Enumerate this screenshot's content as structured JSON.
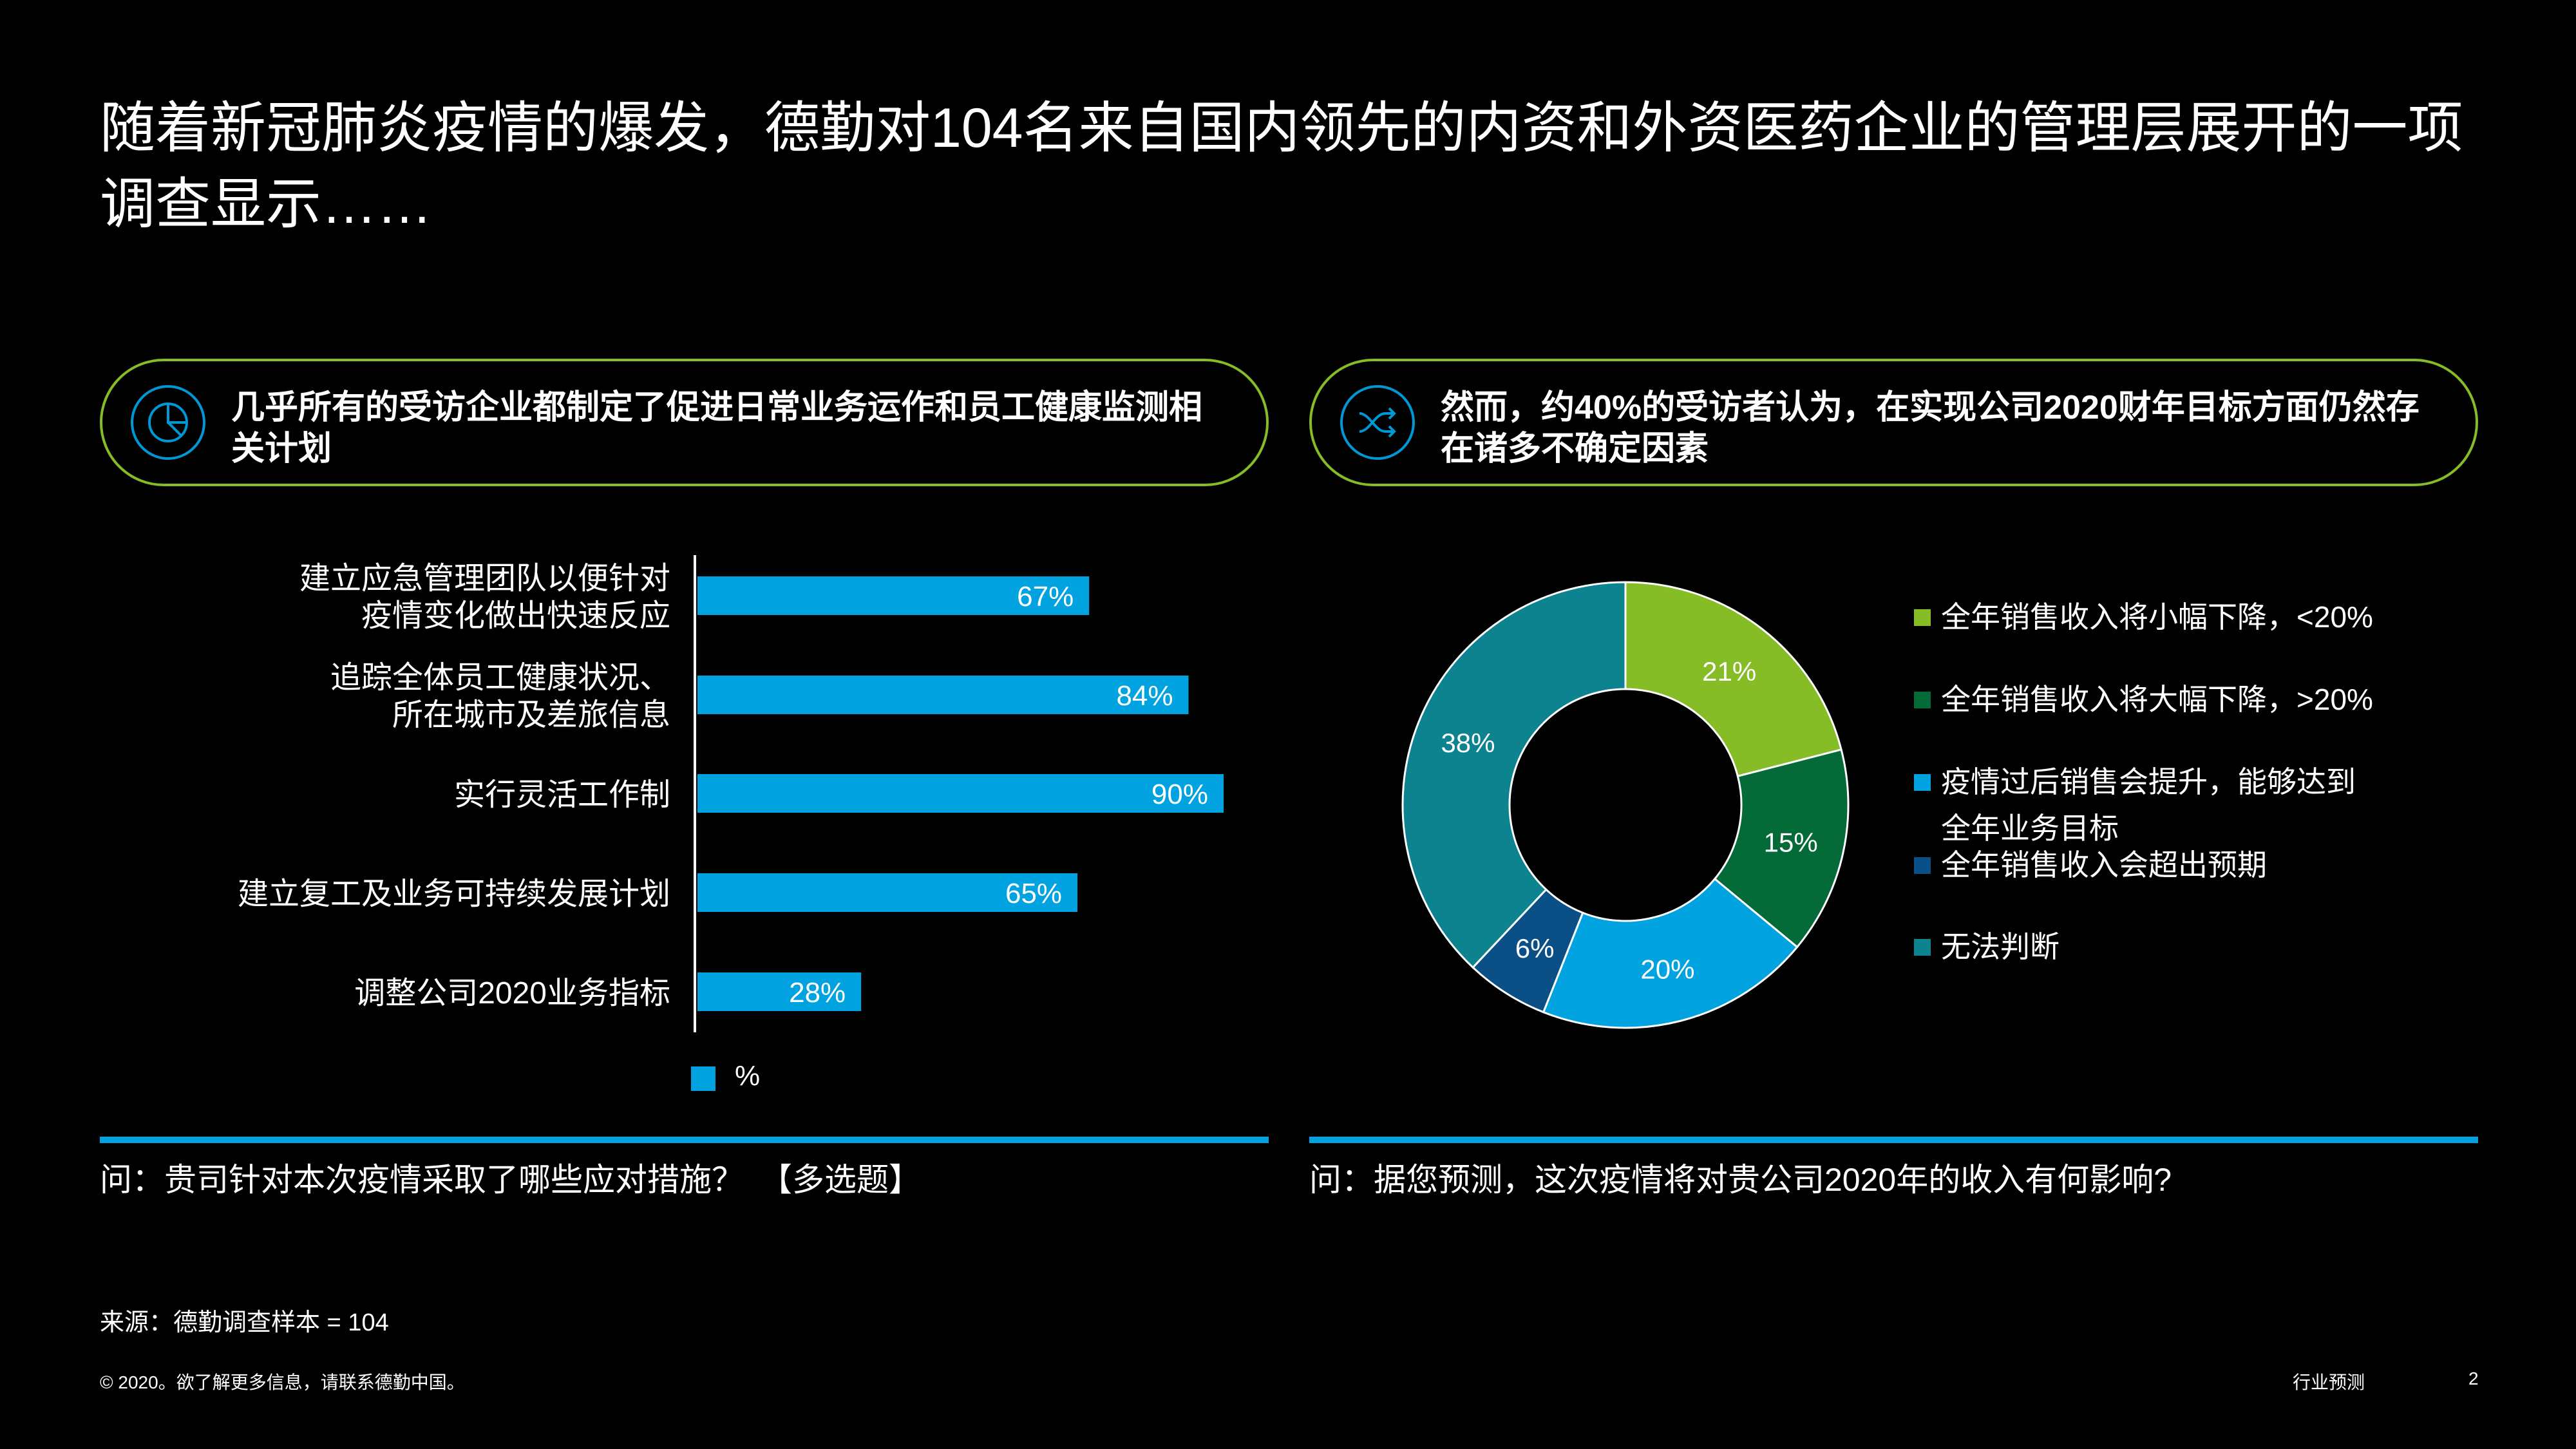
{
  "title": "随着新冠肺炎疫情的爆发，德勤对104名来自国内领先的内资和外资医药企业的管理层展开的一项调查显示……",
  "left_panel": {
    "heading": "几乎所有的受访企业都制定了促进日常业务运作和员工健康监测相关计划",
    "icon": "pie-chart-icon",
    "question": "问：贵司针对本次疫情采取了哪些应对措施？　【多选题】"
  },
  "right_panel": {
    "heading": "然而，约40%的受访者认为，在实现公司2020财年目标方面仍然存在诸多不确定因素",
    "icon": "shuffle-icon",
    "question": "问：据您预测，这次疫情将对贵公司2020年的收入有何影响?"
  },
  "colors": {
    "accent_green": "#86BC25",
    "accent_blue": "#00A3E0",
    "icon_blue": "#0097D5"
  },
  "chart_data": [
    {
      "type": "bar",
      "orientation": "horizontal",
      "categories": [
        [
          "建立应急管理团队以便针对",
          "疫情变化做出快速反应"
        ],
        [
          "追踪全体员工健康状况、",
          "所在城市及差旅信息"
        ],
        [
          "实行灵活工作制"
        ],
        [
          "建立复工及业务可持续发展计划"
        ],
        [
          "调整公司2020业务指标"
        ]
      ],
      "series": [
        {
          "name": "%",
          "values": [
            67,
            84,
            90,
            65,
            28
          ],
          "labels": [
            "67%",
            "84%",
            "90%",
            "65%",
            "28%"
          ],
          "color": "#00A3E0"
        }
      ],
      "xlim": [
        0,
        100
      ],
      "grid": false,
      "legend_position": "bottom-left"
    },
    {
      "type": "pie",
      "style": "donut",
      "slices": [
        {
          "label": "全年销售收入将小幅下降，<20%",
          "value": 21,
          "value_label": "21%",
          "color": "#86BC25"
        },
        {
          "label": "全年销售收入将大幅下降，>20%",
          "value": 15,
          "value_label": "15%",
          "color": "#046A38"
        },
        {
          "label": "疫情过后销售会提升，能够达到全年业务目标",
          "value": 20,
          "value_label": "20%",
          "color": "#00A3E0"
        },
        {
          "label": "全年销售收入会超出预期",
          "value": 6,
          "value_label": "6%",
          "color": "#0A4F85"
        },
        {
          "label": "无法判断",
          "value": 38,
          "value_label": "38%",
          "color": "#0D8390"
        }
      ],
      "legend_position": "right",
      "legend_lines": [
        [
          "全年销售收入将小幅下降，<20%"
        ],
        [
          "全年销售收入将大幅下降，>20%"
        ],
        [
          "疫情过后销售会提升，能够达到",
          "全年业务目标"
        ],
        [
          "全年销售收入会超出预期"
        ],
        [
          "无法判断"
        ]
      ]
    }
  ],
  "source": "来源：德勤调查样本 = 104",
  "footer": {
    "copyright": "© 2020。欲了解更多信息，请联系德勤中国。",
    "section": "行业预测",
    "page": "2"
  }
}
